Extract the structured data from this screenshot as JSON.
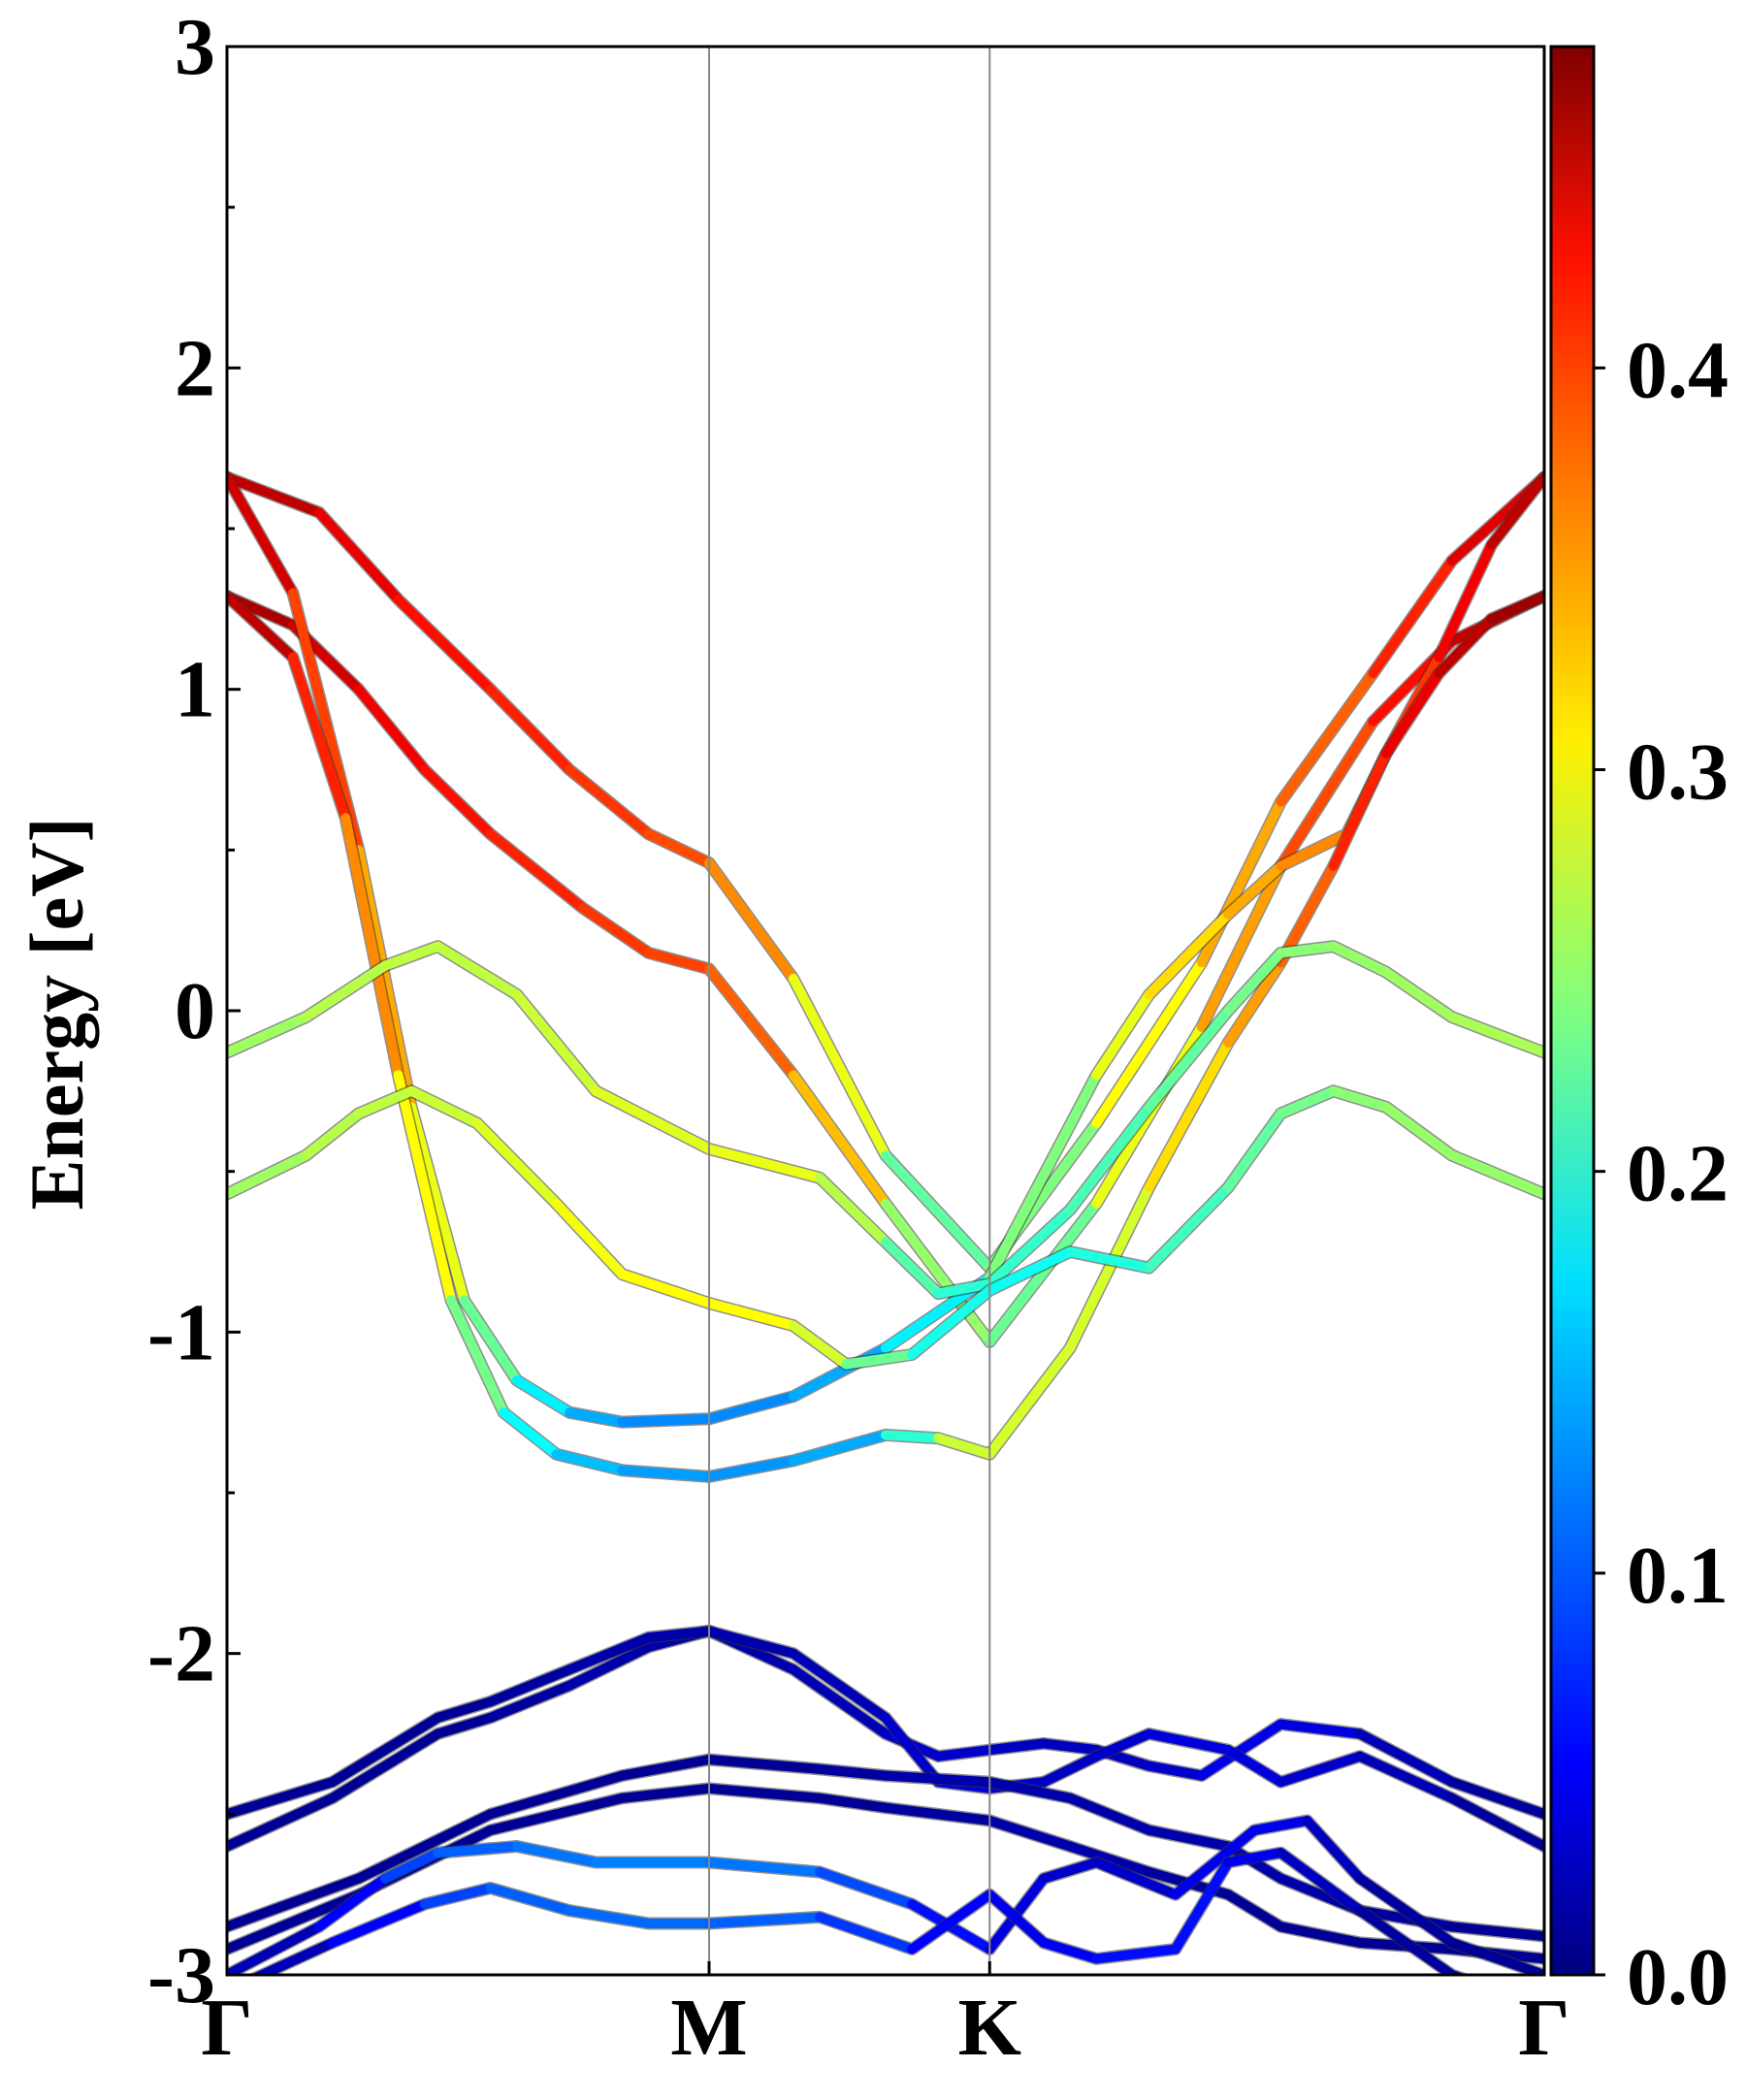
{
  "chart_data": {
    "type": "line",
    "ylabel": "Energy [eV]",
    "xlabel": "",
    "ylim": [
      -3,
      3
    ],
    "ytick_labels": [
      "3",
      "2",
      "1",
      "0",
      "-1",
      "-2",
      "-3"
    ],
    "yticks": [
      3,
      2,
      1,
      0,
      -1,
      -2,
      -3
    ],
    "x_ticks": [
      {
        "label": "Γ",
        "x": 0.0
      },
      {
        "label": "M",
        "x": 0.366
      },
      {
        "label": "K",
        "x": 0.579
      },
      {
        "label": "Γ",
        "x": 1.0
      }
    ],
    "colorbar": {
      "ticks": [
        0.0,
        0.1,
        0.2,
        0.3,
        0.4
      ],
      "tick_labels": [
        "0.0",
        "0.1",
        "0.2",
        "0.3",
        "0.4"
      ],
      "range": [
        0.0,
        0.48
      ],
      "colormap": "jet"
    },
    "series": [
      {
        "x": [
          0,
          0.07,
          0.13,
          0.2,
          0.26,
          0.32,
          0.366,
          0.43,
          0.5,
          0.579,
          0.66,
          0.74,
          0.8,
          0.87,
          0.93,
          1.0
        ],
        "y": [
          1.66,
          1.55,
          1.28,
          1.0,
          0.75,
          0.55,
          0.46,
          0.1,
          -0.45,
          -0.8,
          -0.35,
          0.15,
          0.65,
          1.05,
          1.4,
          1.66
        ],
        "w": [
          0.46,
          0.44,
          0.42,
          0.41,
          0.4,
          0.39,
          0.38,
          0.33,
          0.25,
          0.2,
          0.28,
          0.32,
          0.36,
          0.39,
          0.42,
          0.45
        ]
      },
      {
        "x": [
          0,
          0.05,
          0.1,
          0.15,
          0.2,
          0.27,
          0.32,
          0.366,
          0.43,
          0.5,
          0.579,
          0.66,
          0.74,
          0.8,
          0.87,
          0.93,
          1.0
        ],
        "y": [
          1.29,
          1.2,
          1.0,
          0.75,
          0.55,
          0.32,
          0.18,
          0.13,
          -0.2,
          -0.6,
          -1.03,
          -0.6,
          -0.05,
          0.45,
          0.9,
          1.15,
          1.29
        ],
        "w": [
          0.47,
          0.45,
          0.43,
          0.42,
          0.41,
          0.4,
          0.39,
          0.39,
          0.36,
          0.3,
          0.2,
          0.26,
          0.32,
          0.37,
          0.4,
          0.43,
          0.46
        ]
      },
      {
        "x": [
          0,
          0.05,
          0.1,
          0.14,
          0.18,
          0.22,
          0.26,
          0.3,
          0.366,
          0.43,
          0.5,
          0.579,
          0.66,
          0.7,
          0.76,
          0.8,
          0.85,
          0.88,
          0.92,
          0.96,
          1.0
        ],
        "y": [
          1.66,
          1.3,
          0.5,
          -0.3,
          -0.9,
          -1.15,
          -1.25,
          -1.28,
          -1.27,
          -1.2,
          -1.05,
          -0.83,
          -0.2,
          0.05,
          0.3,
          0.45,
          0.55,
          0.8,
          1.1,
          1.45,
          1.66
        ],
        "w": [
          0.46,
          0.42,
          0.36,
          0.32,
          0.26,
          0.2,
          0.15,
          0.13,
          0.12,
          0.13,
          0.15,
          0.2,
          0.28,
          0.3,
          0.33,
          0.35,
          0.36,
          0.38,
          0.41,
          0.44,
          0.46
        ]
      },
      {
        "x": [
          0,
          0.05,
          0.09,
          0.13,
          0.17,
          0.21,
          0.25,
          0.3,
          0.366,
          0.43,
          0.5,
          0.54,
          0.579,
          0.64,
          0.7,
          0.76,
          0.8,
          0.84,
          0.88,
          0.92,
          0.96,
          1.0
        ],
        "y": [
          1.29,
          1.1,
          0.6,
          -0.2,
          -0.9,
          -1.25,
          -1.38,
          -1.43,
          -1.45,
          -1.4,
          -1.32,
          -1.33,
          -1.38,
          -1.05,
          -0.55,
          -0.1,
          0.15,
          0.45,
          0.8,
          1.05,
          1.22,
          1.29
        ],
        "w": [
          0.47,
          0.43,
          0.38,
          0.33,
          0.27,
          0.2,
          0.16,
          0.14,
          0.13,
          0.13,
          0.15,
          0.25,
          0.3,
          0.26,
          0.3,
          0.33,
          0.36,
          0.39,
          0.42,
          0.44,
          0.46,
          0.47
        ]
      },
      {
        "x": [
          0,
          0.06,
          0.12,
          0.16,
          0.22,
          0.28,
          0.366,
          0.45,
          0.5,
          0.54,
          0.579,
          0.64,
          0.7,
          0.76,
          0.8,
          0.84,
          0.88,
          0.93,
          1.0
        ],
        "y": [
          -0.13,
          -0.02,
          0.14,
          0.2,
          0.05,
          -0.25,
          -0.43,
          -0.52,
          -0.72,
          -0.88,
          -0.85,
          -0.62,
          -0.3,
          0.0,
          0.18,
          0.2,
          0.12,
          -0.02,
          -0.13
        ],
        "w": [
          0.25,
          0.26,
          0.27,
          0.27,
          0.27,
          0.28,
          0.29,
          0.29,
          0.24,
          0.2,
          0.2,
          0.21,
          0.22,
          0.23,
          0.24,
          0.25,
          0.25,
          0.26,
          0.26
        ]
      },
      {
        "x": [
          0,
          0.06,
          0.1,
          0.14,
          0.19,
          0.25,
          0.3,
          0.366,
          0.43,
          0.47,
          0.52,
          0.579,
          0.64,
          0.7,
          0.76,
          0.8,
          0.84,
          0.88,
          0.93,
          1.0
        ],
        "y": [
          -0.57,
          -0.45,
          -0.32,
          -0.25,
          -0.35,
          -0.6,
          -0.82,
          -0.91,
          -0.98,
          -1.1,
          -1.07,
          -0.87,
          -0.75,
          -0.8,
          -0.55,
          -0.32,
          -0.25,
          -0.3,
          -0.45,
          -0.57
        ],
        "w": [
          0.25,
          0.26,
          0.27,
          0.27,
          0.28,
          0.29,
          0.3,
          0.3,
          0.3,
          0.26,
          0.2,
          0.18,
          0.19,
          0.2,
          0.22,
          0.23,
          0.24,
          0.25,
          0.25,
          0.25
        ]
      },
      {
        "x": [
          0,
          0.08,
          0.16,
          0.2,
          0.26,
          0.32,
          0.366,
          0.43,
          0.5,
          0.54,
          0.579,
          0.62,
          0.66,
          0.7,
          0.74,
          0.8,
          0.86,
          0.93,
          1.0
        ],
        "y": [
          -2.6,
          -2.45,
          -2.25,
          -2.2,
          -2.1,
          -1.98,
          -1.93,
          -2.05,
          -2.25,
          -2.32,
          -2.3,
          -2.28,
          -2.3,
          -2.35,
          -2.38,
          -2.22,
          -2.25,
          -2.4,
          -2.5
        ],
        "w": [
          0.01,
          0.01,
          0.01,
          0.01,
          0.02,
          0.02,
          0.02,
          0.02,
          0.03,
          0.04,
          0.03,
          0.03,
          0.03,
          0.03,
          0.04,
          0.06,
          0.03,
          0.02,
          0.01
        ]
      },
      {
        "x": [
          0,
          0.08,
          0.16,
          0.2,
          0.26,
          0.32,
          0.366,
          0.43,
          0.5,
          0.54,
          0.579,
          0.62,
          0.66,
          0.7,
          0.76,
          0.8,
          0.86,
          0.93,
          1.0
        ],
        "y": [
          -2.5,
          -2.4,
          -2.2,
          -2.15,
          -2.05,
          -1.95,
          -1.93,
          -2.0,
          -2.2,
          -2.4,
          -2.42,
          -2.4,
          -2.32,
          -2.25,
          -2.3,
          -2.4,
          -2.32,
          -2.45,
          -2.6
        ],
        "w": [
          0.01,
          0.01,
          0.01,
          0.01,
          0.02,
          0.02,
          0.02,
          0.02,
          0.03,
          0.04,
          0.04,
          0.03,
          0.03,
          0.04,
          0.05,
          0.04,
          0.03,
          0.02,
          0.01
        ]
      },
      {
        "x": [
          0,
          0.1,
          0.2,
          0.3,
          0.366,
          0.45,
          0.5,
          0.579,
          0.64,
          0.7,
          0.76,
          0.8,
          0.86,
          0.93,
          1.0
        ],
        "y": [
          -2.85,
          -2.7,
          -2.5,
          -2.38,
          -2.33,
          -2.36,
          -2.38,
          -2.4,
          -2.45,
          -2.55,
          -2.6,
          -2.7,
          -2.8,
          -2.85,
          -2.88
        ],
        "w": [
          0.01,
          0.01,
          0.01,
          0.01,
          0.01,
          0.01,
          0.02,
          0.02,
          0.02,
          0.02,
          0.02,
          0.02,
          0.02,
          0.01,
          0.01
        ]
      },
      {
        "x": [
          0,
          0.1,
          0.2,
          0.3,
          0.366,
          0.45,
          0.5,
          0.579,
          0.64,
          0.7,
          0.76,
          0.8,
          0.86,
          0.93,
          1.0
        ],
        "y": [
          -2.92,
          -2.75,
          -2.55,
          -2.45,
          -2.42,
          -2.45,
          -2.48,
          -2.52,
          -2.6,
          -2.68,
          -2.75,
          -2.85,
          -2.9,
          -2.92,
          -2.95
        ],
        "w": [
          0.01,
          0.01,
          0.01,
          0.01,
          0.01,
          0.01,
          0.01,
          0.02,
          0.02,
          0.02,
          0.01,
          0.01,
          0.01,
          0.01,
          0.01
        ]
      },
      {
        "x": [
          0,
          0.07,
          0.12,
          0.16,
          0.22,
          0.28,
          0.366,
          0.45,
          0.52,
          0.579,
          0.62,
          0.66,
          0.72,
          0.78,
          0.82,
          0.86,
          0.93,
          1.0
        ],
        "y": [
          -3.0,
          -2.85,
          -2.7,
          -2.62,
          -2.6,
          -2.65,
          -2.65,
          -2.68,
          -2.78,
          -2.92,
          -2.7,
          -2.65,
          -2.75,
          -2.55,
          -2.52,
          -2.7,
          -2.9,
          -3.0
        ],
        "w": [
          0.01,
          0.04,
          0.08,
          0.1,
          0.11,
          0.12,
          0.12,
          0.11,
          0.08,
          0.05,
          0.04,
          0.03,
          0.04,
          0.06,
          0.04,
          0.02,
          0.01,
          0.01
        ]
      },
      {
        "x": [
          0,
          0.08,
          0.15,
          0.2,
          0.26,
          0.32,
          0.366,
          0.45,
          0.52,
          0.579,
          0.62,
          0.66,
          0.72,
          0.76,
          0.8,
          0.86,
          0.93,
          1.0
        ],
        "y": [
          -3.05,
          -2.9,
          -2.78,
          -2.73,
          -2.8,
          -2.84,
          -2.84,
          -2.82,
          -2.92,
          -2.75,
          -2.9,
          -2.95,
          -2.92,
          -2.65,
          -2.62,
          -2.8,
          -3.0,
          -3.1
        ],
        "w": [
          0.01,
          0.04,
          0.08,
          0.1,
          0.11,
          0.11,
          0.11,
          0.1,
          0.07,
          0.05,
          0.05,
          0.06,
          0.07,
          0.06,
          0.04,
          0.02,
          0.01,
          0.01
        ]
      }
    ]
  }
}
